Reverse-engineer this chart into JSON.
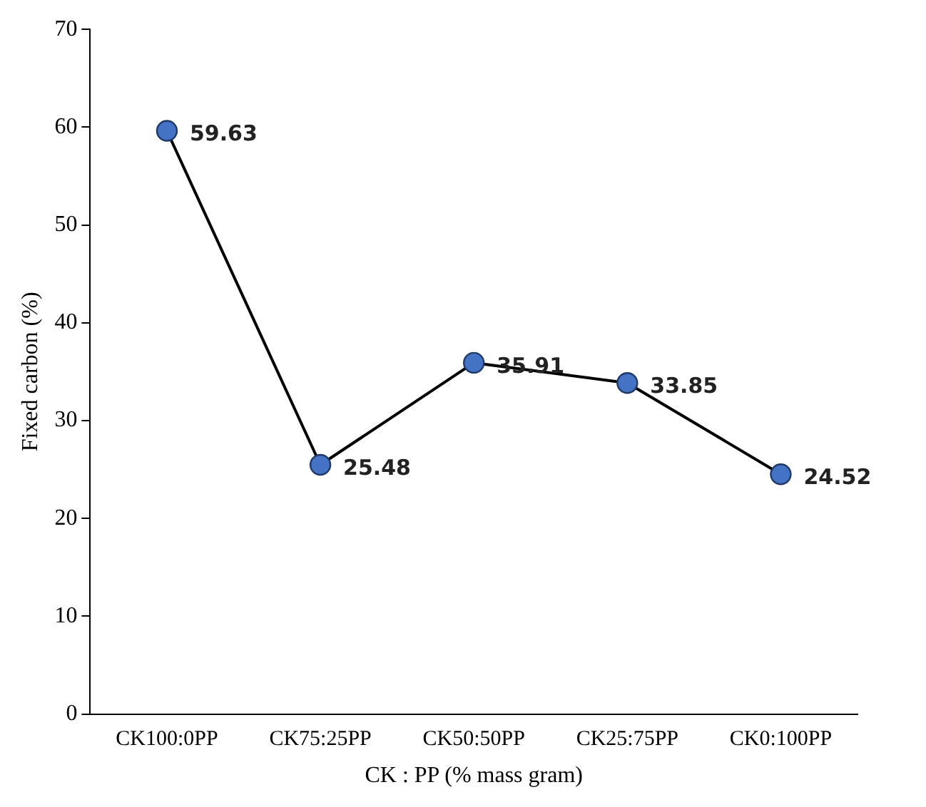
{
  "chart_data": {
    "type": "line",
    "xlabel": "CK : PP (% mass gram)",
    "ylabel": "Fixed carbon (%)",
    "categories": [
      "CK100:0PP",
      "CK75:25PP",
      "CK50:50PP",
      "CK25:75PP",
      "CK0:100PP"
    ],
    "series": [
      {
        "color": "#4472c4",
        "values": [
          59.63,
          25.48,
          35.91,
          33.85,
          24.52
        ]
      }
    ],
    "ylim": [
      0,
      70
    ],
    "yticks": [
      0,
      10,
      20,
      30,
      40,
      50,
      60,
      70
    ],
    "data_labels": true,
    "marker": "circle",
    "line_style": "solid",
    "grid": false,
    "legend": false
  }
}
